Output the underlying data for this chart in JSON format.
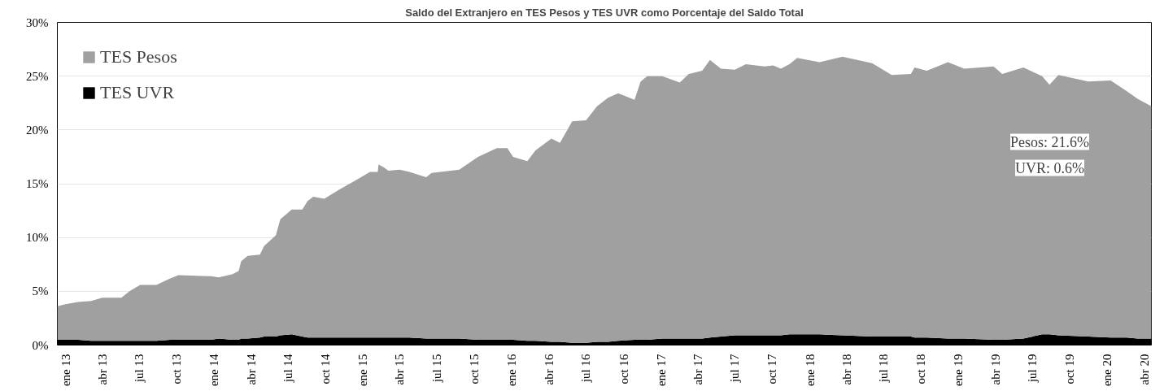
{
  "chart_data": {
    "type": "area",
    "stacked": true,
    "title": "Saldo del Extranjero en TES Pesos y TES UVR como Porcentaje del Saldo Total",
    "x": [
      "2012-12-12",
      "2013-01-01",
      "2013-02-01",
      "2013-03-05",
      "2013-04-01",
      "2013-05-18",
      "2013-06-07",
      "2013-07-03",
      "2013-08-12",
      "2013-09-15",
      "2013-10-05",
      "2013-12-24",
      "2014-01-12",
      "2014-02-15",
      "2014-03-02",
      "2014-03-08",
      "2014-03-24",
      "2014-04-23",
      "2014-05-03",
      "2014-06-01",
      "2014-06-12",
      "2014-07-10",
      "2014-08-05",
      "2014-08-18",
      "2014-09-01",
      "2014-09-28",
      "2014-11-06",
      "2014-12-09",
      "2015-01-18",
      "2015-02-06",
      "2015-02-08",
      "2015-02-22",
      "2015-03-04",
      "2015-04-01",
      "2015-04-25",
      "2015-06-05",
      "2015-06-18",
      "2015-08-25",
      "2015-10-10",
      "2015-11-25",
      "2015-12-21",
      "2016-01-04",
      "2016-02-08",
      "2016-02-28",
      "2016-04-07",
      "2016-04-28",
      "2016-05-28",
      "2016-07-01",
      "2016-07-28",
      "2016-08-24",
      "2016-09-18",
      "2016-10-28",
      "2016-11-12",
      "2016-11-28",
      "2017-01-04",
      "2017-02-16",
      "2017-03-10",
      "2017-04-12",
      "2017-05-01",
      "2017-05-28",
      "2017-07-01",
      "2017-07-28",
      "2017-09-12",
      "2017-10-03",
      "2017-10-22",
      "2017-11-12",
      "2017-12-01",
      "2018-01-25",
      "2018-03-22",
      "2018-06-03",
      "2018-07-21",
      "2018-09-06",
      "2018-09-15",
      "2018-10-15",
      "2018-12-06",
      "2019-01-15",
      "2019-03-28",
      "2019-04-18",
      "2019-06-09",
      "2019-07-25",
      "2019-08-12",
      "2019-09-03",
      "2019-11-15",
      "2020-01-09",
      "2020-02-18",
      "2020-03-15",
      "2020-04-18"
    ],
    "series": [
      {
        "name": "TES UVR",
        "color": "#000000",
        "values": [
          0.5,
          0.5,
          0.5,
          0.4,
          0.4,
          0.4,
          0.4,
          0.4,
          0.4,
          0.5,
          0.5,
          0.5,
          0.6,
          0.5,
          0.5,
          0.6,
          0.6,
          0.7,
          0.8,
          0.8,
          0.9,
          1.0,
          0.8,
          0.7,
          0.7,
          0.7,
          0.7,
          0.7,
          0.7,
          0.7,
          0.7,
          0.7,
          0.7,
          0.7,
          0.7,
          0.6,
          0.6,
          0.6,
          0.5,
          0.5,
          0.5,
          0.5,
          0.4,
          0.4,
          0.3,
          0.3,
          0.2,
          0.2,
          0.3,
          0.3,
          0.4,
          0.5,
          0.5,
          0.5,
          0.6,
          0.6,
          0.6,
          0.6,
          0.7,
          0.8,
          0.9,
          0.9,
          0.9,
          0.9,
          0.9,
          1.0,
          1.0,
          1.0,
          0.9,
          0.8,
          0.8,
          0.8,
          0.7,
          0.7,
          0.6,
          0.6,
          0.5,
          0.5,
          0.6,
          1.0,
          1.0,
          0.9,
          0.8,
          0.7,
          0.7,
          0.6,
          0.6
        ]
      },
      {
        "name": "TES Pesos",
        "color": "#a0a0a0",
        "values": [
          3.1,
          3.3,
          3.5,
          3.7,
          4.0,
          4.0,
          4.6,
          5.2,
          5.2,
          5.7,
          6.0,
          5.9,
          5.7,
          6.1,
          6.4,
          7.2,
          7.7,
          7.7,
          8.4,
          9.4,
          10.8,
          11.6,
          11.8,
          12.7,
          13.1,
          12.9,
          13.8,
          14.5,
          15.4,
          15.4,
          16.1,
          15.8,
          15.5,
          15.6,
          15.4,
          15.0,
          15.4,
          15.7,
          17.0,
          17.8,
          17.8,
          17.0,
          16.7,
          17.7,
          18.9,
          18.5,
          20.6,
          20.7,
          21.9,
          22.7,
          23.0,
          22.3,
          24.0,
          24.5,
          24.4,
          23.8,
          24.6,
          24.9,
          25.8,
          24.9,
          24.7,
          25.2,
          25.0,
          25.1,
          24.8,
          25.1,
          25.7,
          25.3,
          25.9,
          25.4,
          24.3,
          24.4,
          25.1,
          24.8,
          25.7,
          25.1,
          25.4,
          24.7,
          25.2,
          24.0,
          23.2,
          24.2,
          23.7,
          23.9,
          22.9,
          22.3,
          21.6
        ]
      }
    ],
    "xlim": [
      "2012-12-12",
      "2020-04-18"
    ],
    "xticks": [
      {
        "value": "2013-01-01",
        "label": "ene 13"
      },
      {
        "value": "2013-04-01",
        "label": "abr 13"
      },
      {
        "value": "2013-07-01",
        "label": "jul 13"
      },
      {
        "value": "2013-10-01",
        "label": "oct 13"
      },
      {
        "value": "2014-01-01",
        "label": "ene 14"
      },
      {
        "value": "2014-04-01",
        "label": "abr 14"
      },
      {
        "value": "2014-07-01",
        "label": "jul 14"
      },
      {
        "value": "2014-10-01",
        "label": "oct 14"
      },
      {
        "value": "2015-01-01",
        "label": "ene 15"
      },
      {
        "value": "2015-04-01",
        "label": "abr 15"
      },
      {
        "value": "2015-07-01",
        "label": "jul 15"
      },
      {
        "value": "2015-10-01",
        "label": "oct 15"
      },
      {
        "value": "2016-01-01",
        "label": "ene 16"
      },
      {
        "value": "2016-04-01",
        "label": "abr 16"
      },
      {
        "value": "2016-07-01",
        "label": "jul 16"
      },
      {
        "value": "2016-10-01",
        "label": "oct 16"
      },
      {
        "value": "2017-01-01",
        "label": "ene 17"
      },
      {
        "value": "2017-04-01",
        "label": "abr 17"
      },
      {
        "value": "2017-07-01",
        "label": "jul 17"
      },
      {
        "value": "2017-10-01",
        "label": "oct 17"
      },
      {
        "value": "2018-01-01",
        "label": "ene 18"
      },
      {
        "value": "2018-04-01",
        "label": "abr 18"
      },
      {
        "value": "2018-07-01",
        "label": "jul 18"
      },
      {
        "value": "2018-10-01",
        "label": "oct 18"
      },
      {
        "value": "2019-01-01",
        "label": "ene 19"
      },
      {
        "value": "2019-04-01",
        "label": "abr 19"
      },
      {
        "value": "2019-07-01",
        "label": "jul 19"
      },
      {
        "value": "2019-10-01",
        "label": "oct 19"
      },
      {
        "value": "2020-01-01",
        "label": "ene 20"
      },
      {
        "value": "2020-04-01",
        "label": "abr 20"
      }
    ],
    "ylim": [
      0,
      30
    ],
    "yticks": [
      {
        "value": 0,
        "label": "0%"
      },
      {
        "value": 5,
        "label": "5%"
      },
      {
        "value": 10,
        "label": "10%"
      },
      {
        "value": 15,
        "label": "15%"
      },
      {
        "value": 20,
        "label": "20%"
      },
      {
        "value": 25,
        "label": "25%"
      },
      {
        "value": 30,
        "label": "30%"
      }
    ],
    "grid": "y",
    "legend": "top left",
    "annotations": [
      "Pesos: 21.6%",
      "UVR: 0.6%"
    ]
  }
}
